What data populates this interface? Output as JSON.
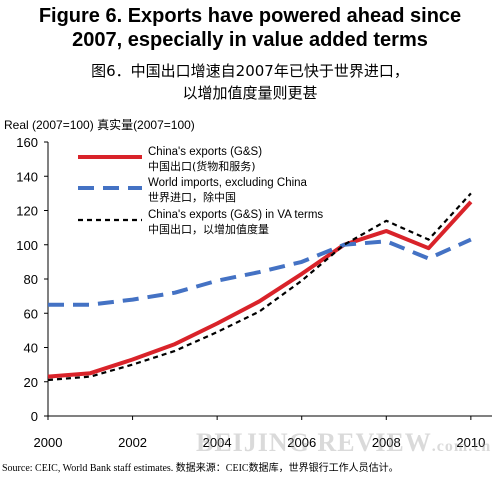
{
  "title": {
    "en_line1": "Figure 6. Exports have powered ahead since",
    "en_line2": "2007, especially in value added terms",
    "cn_line1": "图6．中国出口增速自2007年已快于世界进口，",
    "cn_line2": "以增加值度量则更甚"
  },
  "source": "Source: CEIC, World Bank staff estimates.     数据来源：CEIC数据库，世界银行工作人员估计。",
  "watermark": {
    "main": "BEIJING REVIEW",
    "suffix": ".com.cn"
  },
  "colors": {
    "exports": "#d9232a",
    "imports": "#4472c4",
    "va": "#000000"
  },
  "chart_data": {
    "type": "line",
    "ylabel": "Real (2007=100) 真实量(2007=100)",
    "xlabel": "",
    "ylim": [
      0,
      160
    ],
    "xlim": [
      2000,
      2010.5
    ],
    "yticks": [
      0,
      20,
      40,
      60,
      80,
      100,
      120,
      140,
      160
    ],
    "xticks": [
      2000,
      2002,
      2004,
      2006,
      2008,
      2010
    ],
    "grid": false,
    "legend": "top-left",
    "x": [
      2000,
      2001,
      2002,
      2003,
      2004,
      2005,
      2006,
      2007,
      2008,
      2009,
      2010
    ],
    "series": [
      {
        "name": "China's exports (G&S)",
        "name_cn": "中国出口(货物和服务)",
        "style": "solid-red",
        "values": [
          23,
          25,
          33,
          42,
          54,
          67,
          83,
          100,
          108,
          98,
          125
        ]
      },
      {
        "name": "World imports, excluding China",
        "name_cn": "世界进口，除中国",
        "style": "dashed-blue",
        "values": [
          65,
          65,
          68,
          72,
          79,
          84,
          90,
          100,
          102,
          92,
          103
        ]
      },
      {
        "name": "China's exports (G&S) in VA terms",
        "name_cn": "中国出口，以增加值度量",
        "style": "dotted-black",
        "values": [
          21,
          23,
          30,
          38,
          49,
          61,
          79,
          100,
          114,
          103,
          130
        ]
      }
    ]
  }
}
